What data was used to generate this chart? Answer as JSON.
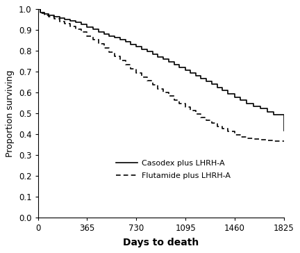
{
  "title": "",
  "xlabel": "Days to death",
  "ylabel": "Proportion surviving",
  "xlim": [
    0,
    1825
  ],
  "ylim": [
    0.0,
    1.0
  ],
  "xticks": [
    0,
    365,
    730,
    1095,
    1460,
    1825
  ],
  "yticks": [
    0.0,
    0.1,
    0.2,
    0.3,
    0.4,
    0.5,
    0.6,
    0.7,
    0.8,
    0.9,
    1.0
  ],
  "line1_label": "Casodex plus LHRH-A",
  "line2_label": "Flutamide plus LHRH-A",
  "line_color": "#000000",
  "linewidth": 1.2,
  "background_color": "#ffffff",
  "casodex_x": [
    0,
    20,
    50,
    80,
    120,
    160,
    200,
    240,
    280,
    320,
    365,
    410,
    450,
    490,
    530,
    570,
    610,
    650,
    690,
    730,
    770,
    810,
    850,
    890,
    930,
    970,
    1010,
    1050,
    1095,
    1130,
    1170,
    1210,
    1250,
    1290,
    1330,
    1370,
    1410,
    1460,
    1500,
    1550,
    1600,
    1650,
    1700,
    1750,
    1825
  ],
  "casodex_y": [
    1.0,
    0.985,
    0.978,
    0.972,
    0.965,
    0.958,
    0.952,
    0.945,
    0.938,
    0.928,
    0.915,
    0.903,
    0.892,
    0.882,
    0.872,
    0.863,
    0.853,
    0.843,
    0.832,
    0.82,
    0.808,
    0.796,
    0.783,
    0.772,
    0.76,
    0.748,
    0.735,
    0.722,
    0.708,
    0.695,
    0.682,
    0.668,
    0.655,
    0.64,
    0.625,
    0.61,
    0.595,
    0.578,
    0.562,
    0.548,
    0.535,
    0.522,
    0.508,
    0.495,
    0.415
  ],
  "flutamide_x": [
    0,
    20,
    50,
    80,
    120,
    160,
    200,
    240,
    280,
    320,
    365,
    410,
    450,
    490,
    530,
    570,
    610,
    650,
    690,
    730,
    770,
    810,
    850,
    890,
    930,
    970,
    1010,
    1050,
    1095,
    1130,
    1170,
    1210,
    1250,
    1290,
    1330,
    1370,
    1410,
    1460,
    1500,
    1550,
    1600,
    1650,
    1700,
    1750,
    1825
  ],
  "flutamide_y": [
    1.0,
    0.98,
    0.972,
    0.963,
    0.953,
    0.942,
    0.931,
    0.918,
    0.905,
    0.89,
    0.872,
    0.853,
    0.835,
    0.815,
    0.795,
    0.775,
    0.755,
    0.735,
    0.715,
    0.695,
    0.675,
    0.656,
    0.637,
    0.618,
    0.6,
    0.582,
    0.565,
    0.548,
    0.53,
    0.513,
    0.497,
    0.481,
    0.466,
    0.452,
    0.438,
    0.425,
    0.412,
    0.398,
    0.385,
    0.38,
    0.375,
    0.372,
    0.37,
    0.368,
    0.365
  ]
}
